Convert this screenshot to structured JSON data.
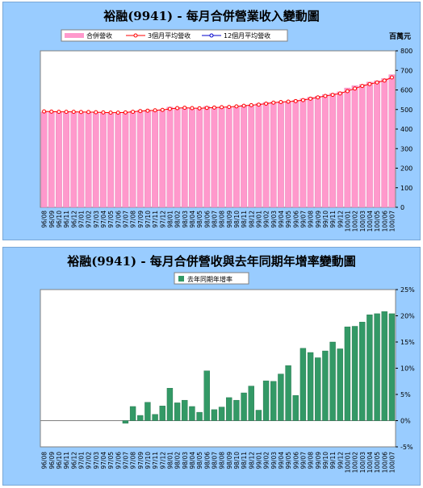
{
  "chart_data": [
    {
      "type": "bar",
      "title": "裕融(9941) - 每月合併營業收入變動圖",
      "unit_label": "百萬元",
      "ylim": [
        0,
        800
      ],
      "y_ticks": [
        "0",
        "100",
        "200",
        "300",
        "400",
        "500",
        "600",
        "700",
        "800"
      ],
      "legend_placement": "top-left",
      "categories": [
        "96/08",
        "96/09",
        "96/10",
        "96/11",
        "96/12",
        "97/01",
        "97/02",
        "97/03",
        "97/04",
        "97/05",
        "97/06",
        "97/07",
        "97/08",
        "97/09",
        "97/10",
        "97/11",
        "97/12",
        "98/01",
        "98/02",
        "98/03",
        "98/04",
        "98/05",
        "98/06",
        "98/07",
        "98/08",
        "98/09",
        "98/10",
        "98/11",
        "98/12",
        "99/01",
        "99/02",
        "99/03",
        "99/04",
        "99/05",
        "99/06",
        "99/07",
        "99/08",
        "99/09",
        "99/10",
        "99/11",
        "99/12",
        "100/01",
        "100/02",
        "100/03",
        "100/04",
        "100/05",
        "100/06",
        "100/07"
      ],
      "series": [
        {
          "name": "合併營收",
          "kind": "bar",
          "color": "#ff99cc",
          "values": [
            487,
            487,
            486,
            487,
            487,
            487,
            486,
            485,
            484,
            482,
            485,
            487,
            492,
            495,
            497,
            496,
            500,
            512,
            508,
            507,
            504,
            505,
            516,
            508,
            512,
            514,
            516,
            522,
            524,
            530,
            536,
            538,
            540,
            542,
            548,
            555,
            563,
            568,
            576,
            582,
            590,
            610,
            622,
            628,
            640,
            647,
            658,
            678
          ]
        },
        {
          "name": "3個月平均營收",
          "kind": "line",
          "color": "#ff0000",
          "values": [
            490,
            489,
            488,
            488,
            488,
            487,
            487,
            486,
            485,
            484,
            484,
            485,
            488,
            492,
            494,
            496,
            498,
            503,
            507,
            509,
            507,
            506,
            508,
            510,
            512,
            513,
            516,
            519,
            522,
            525,
            530,
            535,
            538,
            540,
            543,
            548,
            555,
            562,
            569,
            575,
            582,
            594,
            607,
            620,
            630,
            638,
            648,
            664
          ]
        },
        {
          "name": "12個月平均營收",
          "kind": "line",
          "color": "#0000cc",
          "values": null
        }
      ]
    },
    {
      "type": "bar",
      "title": "裕融(9941)  -  每月合併營收與去年同期年增率變動圖",
      "ylim": [
        -5,
        25
      ],
      "y_ticks": [
        "-5%",
        "0%",
        "5%",
        "10%",
        "15%",
        "20%",
        "25%"
      ],
      "legend_placement": "top-center",
      "categories": [
        "96/08",
        "96/09",
        "96/10",
        "96/11",
        "96/12",
        "97/01",
        "97/02",
        "97/03",
        "97/04",
        "97/05",
        "97/06",
        "97/07",
        "97/08",
        "97/09",
        "97/10",
        "97/11",
        "97/12",
        "98/01",
        "98/02",
        "98/03",
        "98/04",
        "98/05",
        "98/06",
        "98/07",
        "98/08",
        "98/09",
        "98/10",
        "98/11",
        "98/12",
        "99/01",
        "99/02",
        "99/03",
        "99/04",
        "99/05",
        "99/06",
        "99/07",
        "99/08",
        "99/09",
        "99/10",
        "99/11",
        "99/12",
        "100/01",
        "100/02",
        "100/03",
        "100/04",
        "100/05",
        "100/06",
        "100/07"
      ],
      "series": [
        {
          "name": "去年同期年增率",
          "color": "#339966",
          "values": [
            0,
            0,
            0,
            0,
            0,
            0,
            0,
            0,
            0,
            0,
            0,
            -0.5,
            2.7,
            1.0,
            3.5,
            1.2,
            2.8,
            6.2,
            3.4,
            3.9,
            2.7,
            1.6,
            9.5,
            2.1,
            2.6,
            4.4,
            3.9,
            5.3,
            6.6,
            2.0,
            7.6,
            7.5,
            8.9,
            10.5,
            4.8,
            13.8,
            13.0,
            12.0,
            13.3,
            15.0,
            13.7,
            17.9,
            18.0,
            18.8,
            20.2,
            20.4,
            20.8,
            20.4
          ]
        }
      ]
    }
  ]
}
